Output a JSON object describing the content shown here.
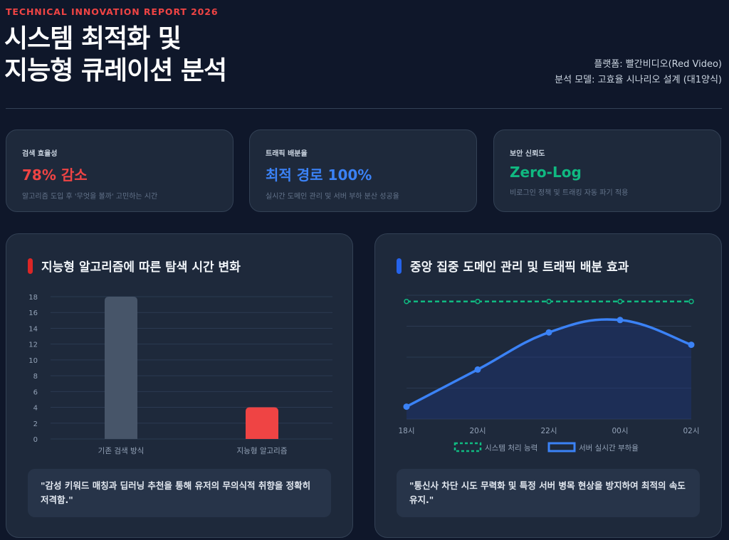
{
  "header": {
    "eyebrow": "TECHNICAL INNOVATION REPORT 2026",
    "title_line1": "시스템 최적화 및",
    "title_line2": "지능형 큐레이션 분석",
    "platform": "플랫폼: 빨간비디오(Red Video)",
    "model": "분석 모델: 고효율 시나리오 설계 (대1양식)"
  },
  "stats": [
    {
      "label": "검색 효율성",
      "value": "78% 감소",
      "desc": "알고리즘 도입 후 '무엇을 볼까' 고민하는 시간",
      "color": "#ef4444"
    },
    {
      "label": "트래픽 배분율",
      "value": "최적 경로 100%",
      "desc": "실시간 도메인 관리 및 서버 부하 분산 성공율",
      "color": "#3b82f6"
    },
    {
      "label": "보안 신뢰도",
      "value": "Zero-Log",
      "desc": "비로그인 정책 및 트래킹 자동 파기 적용",
      "color": "#10b981"
    }
  ],
  "panels": {
    "left": {
      "title": "지능형 알고리즘에 따른 탐색 시간 변화",
      "accent": "#dc2626",
      "quote": "\"감성 키워드 매칭과 딥러닝 추천을 통해 유저의 무의식적 취향을 정확히 저격함.\""
    },
    "right": {
      "title": "중앙 집중 도메인 관리 및 트래픽 배분 효과",
      "accent": "#2563eb",
      "quote": "\"통신사 차단 시도 무력화 및 특정 서버 병목 현상을 방지하여 최적의 속도 유지.\""
    }
  },
  "chart_data": [
    {
      "type": "bar",
      "categories": [
        "기존 검색 방식",
        "지능형 알고리즘"
      ],
      "values": [
        18,
        4
      ],
      "colors": [
        "#475569",
        "#ef4444"
      ],
      "ylim": [
        0,
        18
      ],
      "yticks": [
        "0",
        "2",
        "4",
        "6",
        "8",
        "10",
        "12",
        "14",
        "16",
        "18"
      ],
      "grid": true
    },
    {
      "type": "line",
      "x": [
        "18시",
        "20시",
        "22시",
        "00시",
        "02시"
      ],
      "series": [
        {
          "name": "시스템 처리 능력",
          "values": [
            95,
            95,
            95,
            95,
            95
          ],
          "color": "#10b981",
          "style": "dashed"
        },
        {
          "name": "서버 실시간 부하율",
          "values": [
            10,
            40,
            70,
            80,
            60
          ],
          "color": "#3b82f6",
          "style": "solid-area"
        }
      ],
      "ylim": [
        0,
        100
      ],
      "grid": true,
      "legend": "bottom"
    }
  ]
}
